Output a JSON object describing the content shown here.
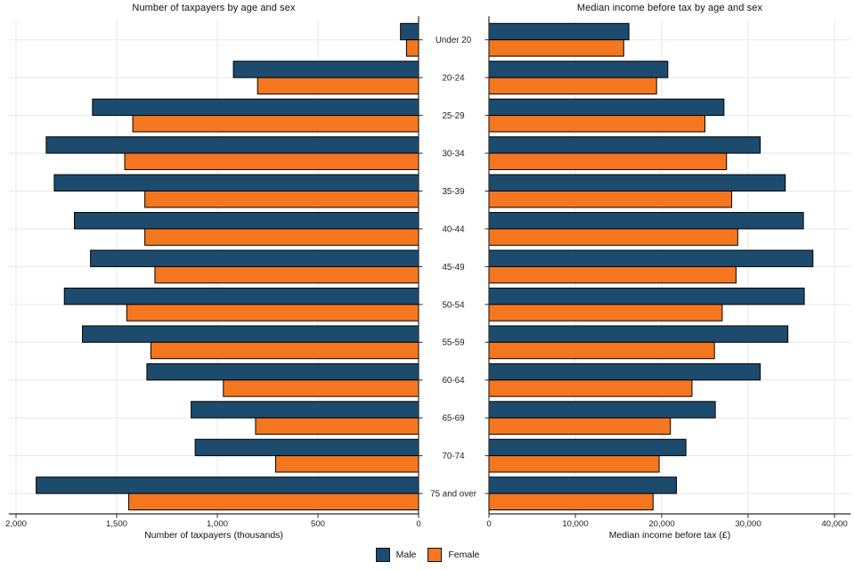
{
  "colors": {
    "male": "#1d4b6e",
    "female": "#f4771f",
    "grid": "#e7e7e7",
    "axis": "#2b2b2b",
    "text": "#222222",
    "bar_stroke": "#000000",
    "background": "#ffffff"
  },
  "legend": {
    "male_label": "Male",
    "female_label": "Female"
  },
  "center_axis": {
    "categories": [
      "Under 20",
      "20-24",
      "25-29",
      "30-34",
      "35-39",
      "40-44",
      "45-49",
      "50-54",
      "55-59",
      "60-64",
      "65-69",
      "70-74",
      "75 and over"
    ]
  },
  "chart_data": [
    {
      "type": "bar",
      "orientation": "horizontal",
      "panel": "left",
      "title": "Number of taxpayers by age and sex",
      "xlabel": "Number of taxpayers (thousands)",
      "x_reversed": true,
      "xlim": [
        0,
        2000
      ],
      "grid": true,
      "xticks": {
        "values": [
          2000,
          1500,
          1000,
          500,
          0
        ],
        "labels": [
          "2,000",
          "1,500",
          "1,000",
          "500",
          "0"
        ]
      },
      "categories": [
        "Under 20",
        "20-24",
        "25-29",
        "30-34",
        "35-39",
        "40-44",
        "45-49",
        "50-54",
        "55-59",
        "60-64",
        "65-69",
        "70-74",
        "75 and over"
      ],
      "series": [
        {
          "name": "Male",
          "values": [
            90,
            920,
            1620,
            1850,
            1810,
            1710,
            1630,
            1760,
            1670,
            1350,
            1130,
            1110,
            1900
          ]
        },
        {
          "name": "Female",
          "values": [
            60,
            800,
            1420,
            1460,
            1360,
            1360,
            1310,
            1450,
            1330,
            970,
            810,
            710,
            1440
          ]
        }
      ]
    },
    {
      "type": "bar",
      "orientation": "horizontal",
      "panel": "right",
      "title": "Median income before tax by age and sex",
      "xlabel": "Median income before tax (£)",
      "x_reversed": false,
      "xlim": [
        0,
        40000
      ],
      "grid": true,
      "xticks": {
        "values": [
          0,
          10000,
          20000,
          30000,
          40000
        ],
        "labels": [
          "0",
          "10,000",
          "20,000",
          "30,000",
          "40,000"
        ]
      },
      "categories": [
        "Under 20",
        "20-24",
        "25-29",
        "30-34",
        "35-39",
        "40-44",
        "45-49",
        "50-54",
        "55-59",
        "60-64",
        "65-69",
        "70-74",
        "75 and over"
      ],
      "series": [
        {
          "name": "Male",
          "values": [
            16200,
            20700,
            27200,
            31400,
            34300,
            36400,
            37500,
            36500,
            34600,
            31400,
            26200,
            22800,
            21700
          ]
        },
        {
          "name": "Female",
          "values": [
            15600,
            19400,
            25000,
            27500,
            28100,
            28800,
            28600,
            27000,
            26100,
            23500,
            21000,
            19700,
            19000
          ]
        }
      ]
    }
  ]
}
